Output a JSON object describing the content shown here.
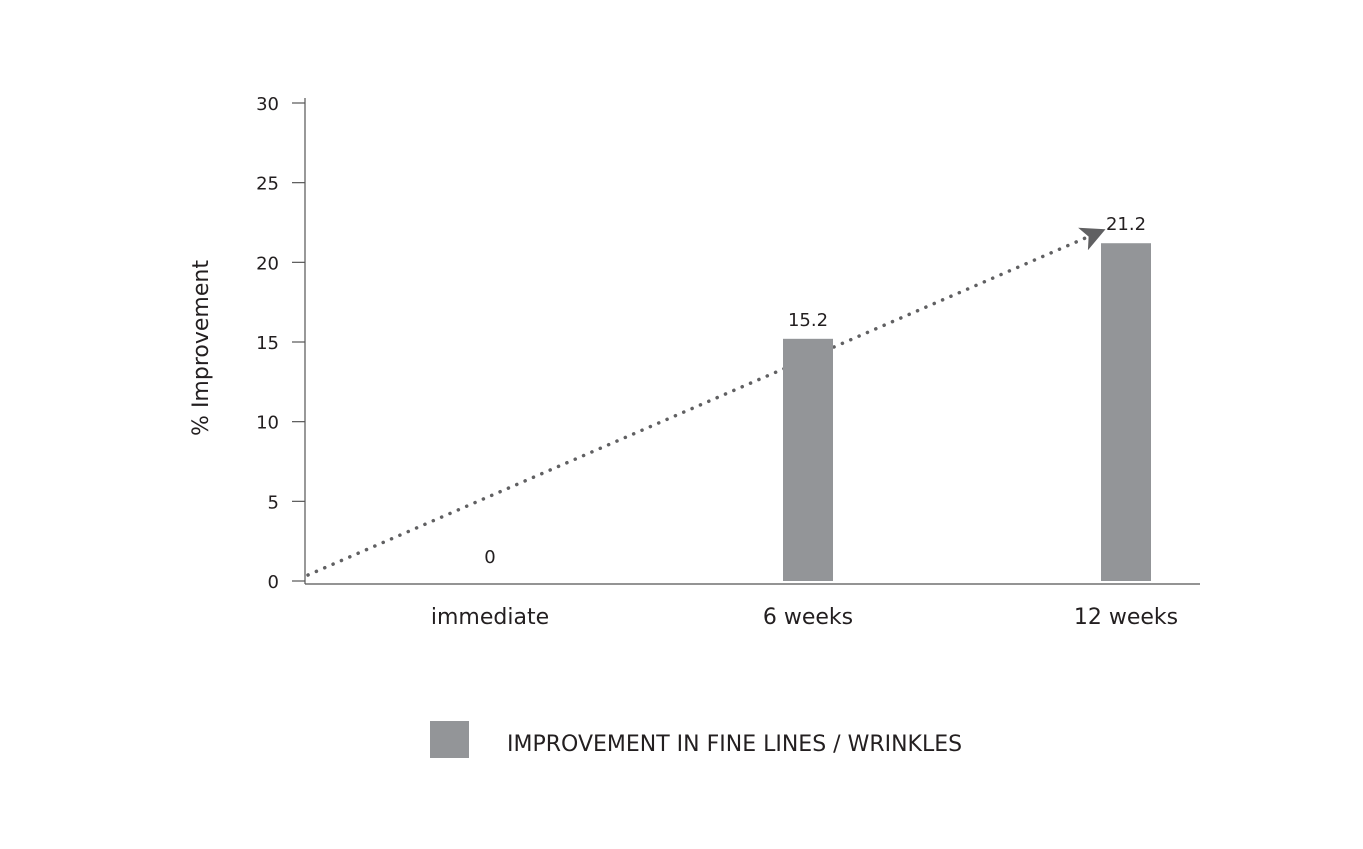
{
  "chart_data": {
    "type": "bar",
    "y_label": "% Improvement",
    "categories": [
      "immediate",
      "6 weeks",
      "12 weeks"
    ],
    "series": [
      {
        "name": "IMPROVEMENT IN FINE LINES / WRINKLES",
        "color": "#939598",
        "values": [
          0,
          15.2,
          21.2
        ]
      }
    ],
    "ylim": [
      0,
      30
    ],
    "yticks": [
      0,
      5,
      10,
      15,
      20,
      25,
      30
    ],
    "grid": false,
    "legend": "bottom"
  }
}
